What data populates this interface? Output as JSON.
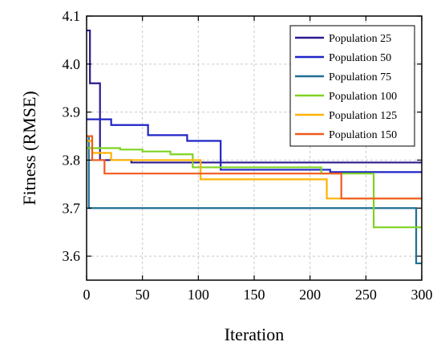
{
  "chart_data": {
    "type": "line",
    "title": "",
    "xlabel": "Iteration",
    "ylabel": "Fitness (RMSE)",
    "xlim": [
      0,
      300
    ],
    "ylim": [
      3.55,
      4.1
    ],
    "xticks": [
      0,
      50,
      100,
      150,
      200,
      250,
      300
    ],
    "yticks": [
      3.6,
      3.7,
      3.8,
      3.9,
      4.0,
      4.1
    ],
    "xtick_labels": [
      "0",
      "50",
      "100",
      "150",
      "200",
      "250",
      "300"
    ],
    "ytick_labels": [
      "3.6",
      "3.7",
      "3.8",
      "3.9",
      "4.0",
      "4.1"
    ],
    "grid": true,
    "legend_position": "top-right",
    "series": [
      {
        "name": "Population 25",
        "color": "#2b1a8f",
        "step": true,
        "points": [
          [
            0,
            4.07
          ],
          [
            3,
            3.96
          ],
          [
            10,
            3.96
          ],
          [
            12,
            3.8
          ],
          [
            40,
            3.795
          ],
          [
            300,
            3.795
          ]
        ]
      },
      {
        "name": "Population 50",
        "color": "#1f24c6",
        "step": true,
        "points": [
          [
            0,
            3.885
          ],
          [
            22,
            3.873
          ],
          [
            55,
            3.852
          ],
          [
            90,
            3.84
          ],
          [
            120,
            3.78
          ],
          [
            218,
            3.775
          ],
          [
            300,
            3.775
          ]
        ]
      },
      {
        "name": "Population 75",
        "color": "#1f6f94",
        "step": true,
        "points": [
          [
            0,
            3.85
          ],
          [
            2,
            3.7
          ],
          [
            295,
            3.585
          ],
          [
            300,
            3.585
          ]
        ]
      },
      {
        "name": "Population 100",
        "color": "#7ed321",
        "step": true,
        "points": [
          [
            0,
            3.825
          ],
          [
            30,
            3.822
          ],
          [
            50,
            3.818
          ],
          [
            75,
            3.812
          ],
          [
            95,
            3.785
          ],
          [
            210,
            3.772
          ],
          [
            257,
            3.66
          ],
          [
            300,
            3.66
          ]
        ]
      },
      {
        "name": "Population 125",
        "color": "#ffb300",
        "step": true,
        "points": [
          [
            0,
            3.84
          ],
          [
            5,
            3.815
          ],
          [
            22,
            3.8
          ],
          [
            102,
            3.76
          ],
          [
            215,
            3.72
          ],
          [
            300,
            3.72
          ]
        ]
      },
      {
        "name": "Population 150",
        "color": "#f05a1e",
        "step": true,
        "points": [
          [
            0,
            3.85
          ],
          [
            5,
            3.8
          ],
          [
            16,
            3.772
          ],
          [
            228,
            3.72
          ],
          [
            300,
            3.72
          ]
        ]
      }
    ]
  }
}
